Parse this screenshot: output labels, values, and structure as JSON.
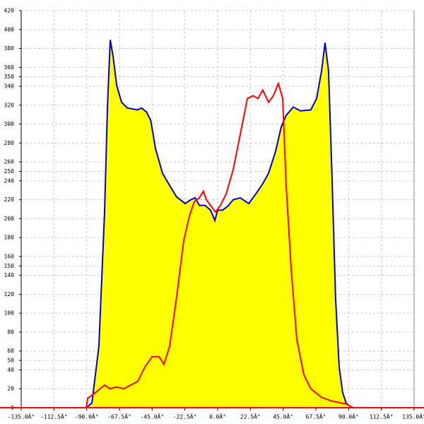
{
  "chart_data": {
    "type": "area",
    "xlim": [
      -135,
      135
    ],
    "ylim": [
      0,
      420
    ],
    "xticks": [
      {
        "value": -135,
        "label": "-135.0Â°"
      },
      {
        "value": -112.5,
        "label": "-112.5Â°"
      },
      {
        "value": -90,
        "label": "-90.0Â°"
      },
      {
        "value": -67.5,
        "label": "-67.5Â°"
      },
      {
        "value": -45,
        "label": "-45.0Â°"
      },
      {
        "value": -22.5,
        "label": "-22.5Â°"
      },
      {
        "value": 0,
        "label": "0.0Â°"
      },
      {
        "value": 22.5,
        "label": "22.5Â°"
      },
      {
        "value": 45,
        "label": "45.0Â°"
      },
      {
        "value": 67.5,
        "label": "67.5Â°"
      },
      {
        "value": 90,
        "label": "90.0Â°"
      },
      {
        "value": 112.5,
        "label": "112.5Â°"
      },
      {
        "value": 135,
        "label": "135.0Â°"
      }
    ],
    "yticks": [
      0,
      20,
      40,
      50,
      60,
      80,
      100,
      120,
      140,
      150,
      160,
      180,
      200,
      220,
      240,
      250,
      260,
      280,
      300,
      320,
      340,
      350,
      360,
      380,
      400,
      420
    ],
    "grid": true,
    "axis_color": "#ff0000",
    "series": [
      {
        "color": "#0000cc",
        "fill": "#ffff00",
        "x": [
          -90.3,
          -86.4,
          -81.6,
          -77.7,
          -75.7,
          -73.8,
          -71.8,
          -69.4,
          -66,
          -62,
          -54.9,
          -52.4,
          -49,
          -46,
          -42.7,
          -37.9,
          -33,
          -28.2,
          -22.3,
          -18.4,
          -15.5,
          -12.6,
          -8.7,
          -4.9,
          -1.9,
          0,
          3.4,
          6.8,
          10.7,
          15.5,
          21.4,
          26.2,
          31,
          35,
          39.8,
          43.7,
          47,
          52,
          56.8,
          64,
          68,
          71.4,
          73.8,
          76.2,
          78.6,
          81,
          83.5,
          85.9,
          88.3,
          90.8
        ],
        "values": [
          0,
          5,
          65,
          207,
          319,
          389,
          371,
          341,
          323,
          317,
          315,
          317,
          313,
          304,
          274,
          248,
          235,
          223,
          216,
          220,
          222,
          214,
          214,
          209,
          198,
          209,
          209,
          213,
          220,
          222,
          216,
          226,
          237,
          248,
          271,
          297,
          309,
          318,
          314,
          315,
          327,
          356,
          386,
          356,
          244,
          117,
          43,
          16,
          5,
          1.5
        ]
      },
      {
        "color": "#ff0000",
        "x": [
          -90.3,
          -89.3,
          -84,
          -77.7,
          -74,
          -69.4,
          -64.6,
          -59.7,
          -54.9,
          -50,
          -45,
          -40.3,
          -36.9,
          -33,
          -28.2,
          -23.3,
          -19.4,
          -16,
          -12.6,
          -9.7,
          -7.8,
          -4.9,
          -1.5,
          1.9,
          5.8,
          10.7,
          15.5,
          20.4,
          24.3,
          27.7,
          31,
          35,
          38.3,
          41.7,
          44.7,
          47,
          50.5,
          54.4,
          59.2,
          64,
          71.4,
          78.6,
          88.3,
          93.2
        ],
        "values": [
          0,
          10,
          16,
          24,
          20,
          22,
          20,
          24,
          28,
          43,
          54,
          54,
          46,
          65,
          117,
          177,
          203,
          218,
          222,
          229,
          220,
          214,
          207,
          214,
          226,
          252,
          289,
          327,
          330,
          327,
          336,
          323,
          330,
          343,
          327,
          237,
          147,
          72,
          35,
          20,
          11,
          7,
          4,
          0
        ]
      }
    ]
  }
}
